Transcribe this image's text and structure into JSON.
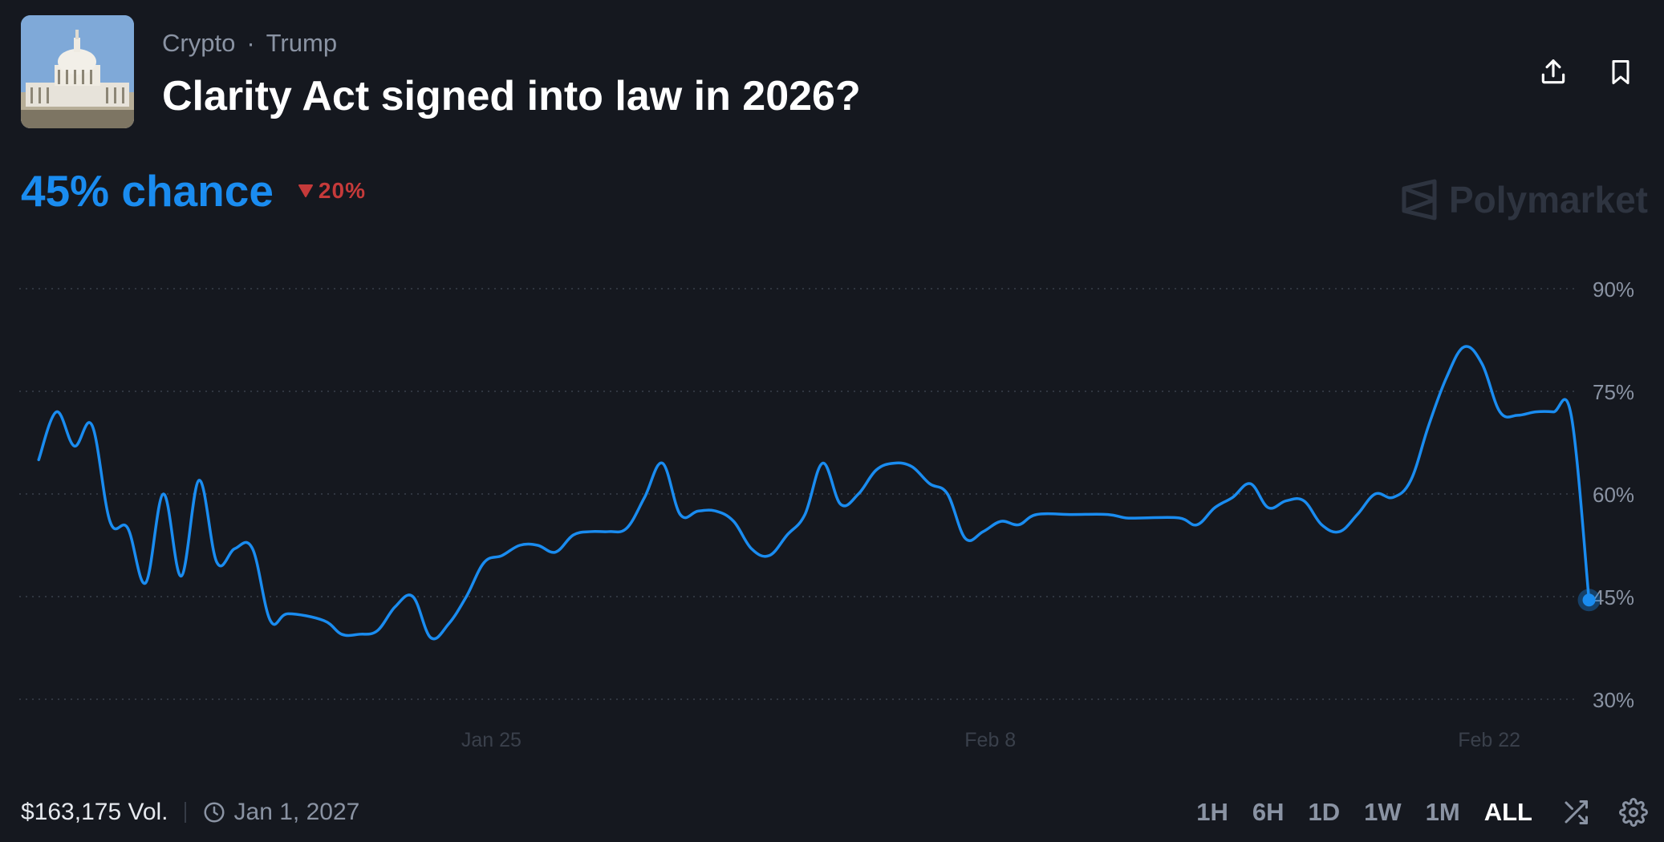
{
  "header": {
    "category": "Crypto",
    "subcategory": "Trump",
    "separator": "·",
    "title": "Clarity Act signed into law in 2026?",
    "thumbnail_icon": "capitol-building-image"
  },
  "probability": {
    "chance_label": "45% chance",
    "change_label": "20%",
    "change_direction": "down"
  },
  "brand": {
    "name": "Polymarket"
  },
  "colors": {
    "line": "#1a8cf0",
    "down": "#c53a3a",
    "grid": "#3a404b",
    "axis_text": "#8a93a3",
    "background": "#15181f"
  },
  "chart_data": {
    "type": "line",
    "title": "",
    "xlabel": "",
    "ylabel": "",
    "ylim": [
      27,
      95
    ],
    "yticks": [
      90,
      75,
      60,
      45,
      30
    ],
    "ytick_labels": [
      "90%",
      "75%",
      "60%",
      "45%",
      "30%"
    ],
    "xticks": [
      "Jan 25",
      "Feb 8",
      "Feb 22"
    ],
    "grid": true,
    "series": [
      {
        "points": [
          [
            "Jan 12",
            65
          ],
          [
            "Jan 12.5",
            72
          ],
          [
            "Jan 13",
            67
          ],
          [
            "Jan 13.5",
            70
          ],
          [
            "Jan 14",
            56
          ],
          [
            "Jan 14.5",
            55
          ],
          [
            "Jan 15",
            47
          ],
          [
            "Jan 15.5",
            60
          ],
          [
            "Jan 16",
            48
          ],
          [
            "Jan 16.5",
            62
          ],
          [
            "Jan 17",
            50
          ],
          [
            "Jan 17.5",
            52
          ],
          [
            "Jan 18",
            52
          ],
          [
            "Jan 18.5",
            41.5
          ],
          [
            "Jan 19",
            42.5
          ],
          [
            "Jan 20",
            41.5
          ],
          [
            "Jan 20.5",
            39.5
          ],
          [
            "Jan 21",
            39.5
          ],
          [
            "Jan 21.5",
            40
          ],
          [
            "Jan 22",
            43.5
          ],
          [
            "Jan 22.5",
            45
          ],
          [
            "Jan 23",
            39
          ],
          [
            "Jan 23.5",
            41
          ],
          [
            "Jan 24",
            45
          ],
          [
            "Jan 24.5",
            50
          ],
          [
            "Jan 25",
            51
          ],
          [
            "Jan 25.5",
            52.5
          ],
          [
            "Jan 26",
            52.5
          ],
          [
            "Jan 26.5",
            51.5
          ],
          [
            "Jan 27",
            54
          ],
          [
            "Jan 27.5",
            54.5
          ],
          [
            "Jan 28",
            54.5
          ],
          [
            "Jan 28.5",
            55
          ],
          [
            "Jan 29",
            59.5
          ],
          [
            "Jan 29.5",
            64.5
          ],
          [
            "Jan 30",
            57
          ],
          [
            "Jan 30.5",
            57.5
          ],
          [
            "Jan 31",
            57.5
          ],
          [
            "Jan 31.5",
            56
          ],
          [
            "Feb 1",
            52
          ],
          [
            "Feb 1.5",
            51
          ],
          [
            "Feb 2",
            54
          ],
          [
            "Feb 2.5",
            57
          ],
          [
            "Feb 3",
            64.5
          ],
          [
            "Feb 3.5",
            58.5
          ],
          [
            "Feb 4",
            60
          ],
          [
            "Feb 4.5",
            63.5
          ],
          [
            "Feb 5",
            64.5
          ],
          [
            "Feb 5.5",
            64
          ],
          [
            "Feb 6",
            61.5
          ],
          [
            "Feb 6.5",
            60
          ],
          [
            "Feb 7",
            53.5
          ],
          [
            "Feb 7.5",
            54.5
          ],
          [
            "Feb 8",
            56
          ],
          [
            "Feb 8.5",
            55.5
          ],
          [
            "Feb 9",
            57
          ],
          [
            "Feb 10",
            57
          ],
          [
            "Feb 11",
            57
          ],
          [
            "Feb 11.5",
            56.5
          ],
          [
            "Feb 12",
            56.5
          ],
          [
            "Feb 13",
            56.5
          ],
          [
            "Feb 13.5",
            55.5
          ],
          [
            "Feb 14",
            58
          ],
          [
            "Feb 14.5",
            59.5
          ],
          [
            "Feb 15",
            61.5
          ],
          [
            "Feb 15.5",
            58
          ],
          [
            "Feb 16",
            59
          ],
          [
            "Feb 16.5",
            59
          ],
          [
            "Feb 17",
            55.5
          ],
          [
            "Feb 17.5",
            54.5
          ],
          [
            "Feb 18",
            57
          ],
          [
            "Feb 18.5",
            60
          ],
          [
            "Feb 19",
            59.5
          ],
          [
            "Feb 19.5",
            62
          ],
          [
            "Feb 20",
            70
          ],
          [
            "Feb 20.5",
            77
          ],
          [
            "Feb 21",
            81.5
          ],
          [
            "Feb 21.5",
            79
          ],
          [
            "Feb 22",
            72
          ],
          [
            "Feb 22.5",
            71.5
          ],
          [
            "Feb 23",
            72
          ],
          [
            "Feb 23.5",
            72
          ],
          [
            "Feb 24",
            71.5
          ],
          [
            "Feb 24.5",
            44.5
          ]
        ]
      }
    ],
    "tick_positions": [
      24.7,
      38.7,
      52.7
    ],
    "x_min": 11.5,
    "x_max": 54.7
  },
  "footer": {
    "volume": "$163,175 Vol.",
    "end_date": "Jan 1, 2027",
    "ranges": [
      "1H",
      "6H",
      "1D",
      "1W",
      "1M",
      "ALL"
    ],
    "active_range": "ALL"
  }
}
